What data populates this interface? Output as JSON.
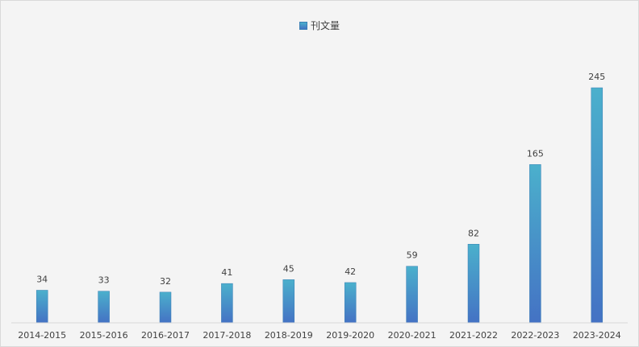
{
  "chart_data": {
    "type": "bar",
    "categories": [
      "2014-2015",
      "2015-2016",
      "2016-2017",
      "2017-2018",
      "2018-2019",
      "2019-2020",
      "2020-2021",
      "2021-2022",
      "2022-2023",
      "2023-2024"
    ],
    "series": [
      {
        "name": "刊文量",
        "values": [
          34,
          33,
          32,
          41,
          45,
          42,
          59,
          82,
          165,
          245
        ]
      }
    ],
    "title": "",
    "xlabel": "",
    "ylabel": "",
    "ylim": [
      0,
      245
    ],
    "grid": false,
    "legend_position": "top-center",
    "data_labels": true,
    "colors": {
      "bar_top": "#4bb0cc",
      "bar_bottom": "#4472c4",
      "axis": "#d9d9d9",
      "text": "#404040"
    }
  }
}
